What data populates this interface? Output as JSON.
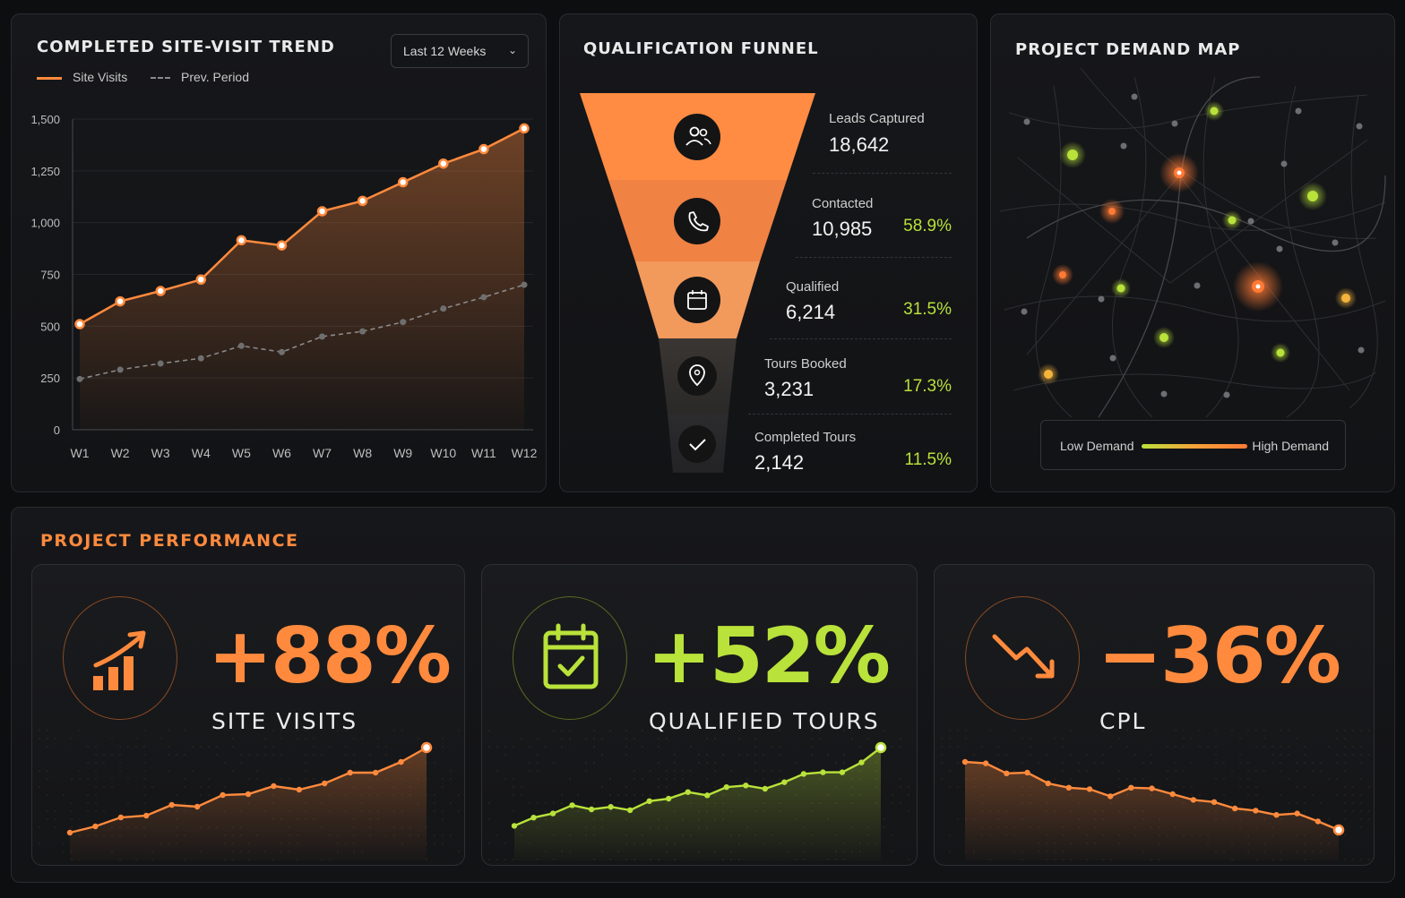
{
  "trend": {
    "title": "COMPLETED SITE-VISIT TREND",
    "range_select": "Last 12 Weeks",
    "legend_current": "Site Visits",
    "legend_prev": "Prev. Period"
  },
  "chart_data": {
    "type": "line",
    "title": "COMPLETED SITE-VISIT TREND",
    "categories": [
      "W1",
      "W2",
      "W3",
      "W4",
      "W5",
      "W6",
      "W7",
      "W8",
      "W9",
      "W10",
      "W11",
      "W12"
    ],
    "yticks": [
      "0",
      "250",
      "500",
      "750",
      "1,000",
      "1,250",
      "1,500"
    ],
    "ylim": [
      0,
      1500
    ],
    "grid": true,
    "series": [
      {
        "name": "Site Visits",
        "color": "#ff8a3d",
        "values": [
          510,
          620,
          670,
          725,
          915,
          890,
          1055,
          1105,
          1195,
          1285,
          1355,
          1455
        ]
      },
      {
        "name": "Prev. Period",
        "color": "#8a8a8a",
        "values": [
          245,
          290,
          320,
          345,
          405,
          375,
          450,
          475,
          520,
          585,
          640,
          700
        ]
      }
    ]
  },
  "funnel": {
    "title": "QUALIFICATION FUNNEL",
    "stages": [
      {
        "label": "Leads Captured",
        "value": "18,642",
        "pct": "",
        "icon": "users-icon"
      },
      {
        "label": "Contacted",
        "value": "10,985",
        "pct": "58.9%",
        "icon": "phone-icon"
      },
      {
        "label": "Qualified",
        "value": "6,214",
        "pct": "31.5%",
        "icon": "calendar-icon"
      },
      {
        "label": "Tours Booked",
        "value": "3,231",
        "pct": "17.3%",
        "icon": "location-pin-icon"
      },
      {
        "label": "Completed Tours",
        "value": "2,142",
        "pct": "11.5%",
        "icon": "check-icon"
      }
    ],
    "pct_color": "#b9e23a"
  },
  "map": {
    "title": "PROJECT DEMAND MAP",
    "legend_low": "Low Demand",
    "legend_high": "High Demand"
  },
  "performance": {
    "title": "PROJECT PERFORMANCE",
    "cards": [
      {
        "value": "+88%",
        "caption": "SITE VISITS",
        "color": "#ff8a3d",
        "icon": "growth-chart-icon",
        "trend": [
          0.05,
          0.12,
          0.22,
          0.24,
          0.36,
          0.34,
          0.47,
          0.48,
          0.57,
          0.53,
          0.6,
          0.72,
          0.72,
          0.84,
          1.0
        ]
      },
      {
        "value": "+52%",
        "caption": "QUALIFIED TOURS",
        "color": "#b9e23a",
        "icon": "calendar-check-icon",
        "trend": [
          0.05,
          0.15,
          0.2,
          0.3,
          0.25,
          0.28,
          0.24,
          0.35,
          0.38,
          0.46,
          0.42,
          0.52,
          0.54,
          0.5,
          0.58,
          0.68,
          0.7,
          0.7,
          0.82,
          1.0
        ]
      },
      {
        "value": "−36%",
        "caption": "CPL",
        "color": "#ff8a3d",
        "icon": "downtrend-arrow-icon",
        "trend": [
          1.0,
          0.98,
          0.84,
          0.85,
          0.7,
          0.64,
          0.62,
          0.52,
          0.64,
          0.63,
          0.55,
          0.47,
          0.44,
          0.35,
          0.32,
          0.26,
          0.28,
          0.17,
          0.05
        ]
      }
    ]
  }
}
